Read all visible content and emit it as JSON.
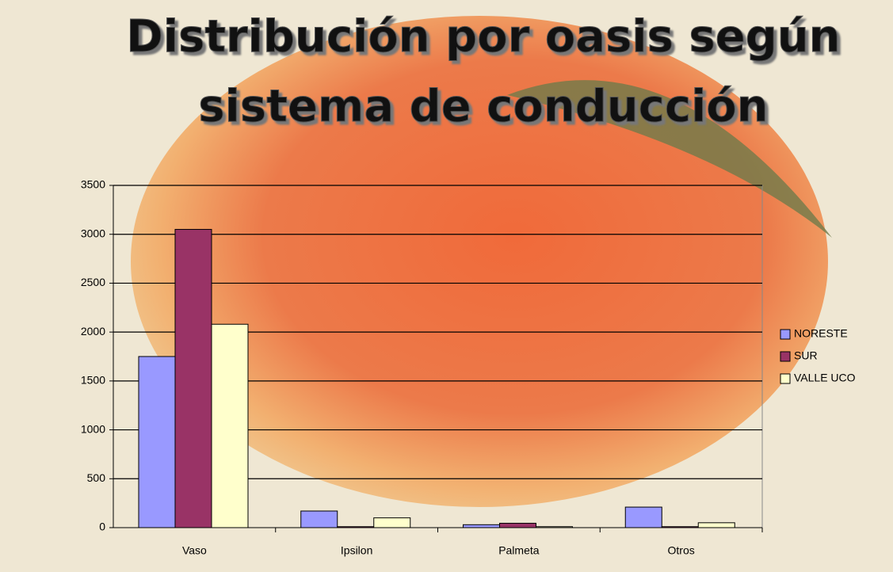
{
  "chart_data": {
    "type": "bar",
    "title": "Distribución por oasis según sistema de conducción",
    "categories": [
      "Vaso",
      "Ipsilon",
      "Palmeta",
      "Otros"
    ],
    "series": [
      {
        "name": "NORESTE",
        "color": "#9999ff",
        "values": [
          1750,
          170,
          30,
          210
        ]
      },
      {
        "name": "SUR",
        "color": "#993366",
        "values": [
          3050,
          10,
          45,
          10
        ]
      },
      {
        "name": "VALLE UCO",
        "color": "#ffffcc",
        "values": [
          2080,
          100,
          10,
          50
        ]
      }
    ],
    "ylim": [
      0,
      3500
    ],
    "yticks": [
      0,
      500,
      1000,
      1500,
      2000,
      2500,
      3000,
      3500
    ],
    "grid": true,
    "legend": "right"
  }
}
